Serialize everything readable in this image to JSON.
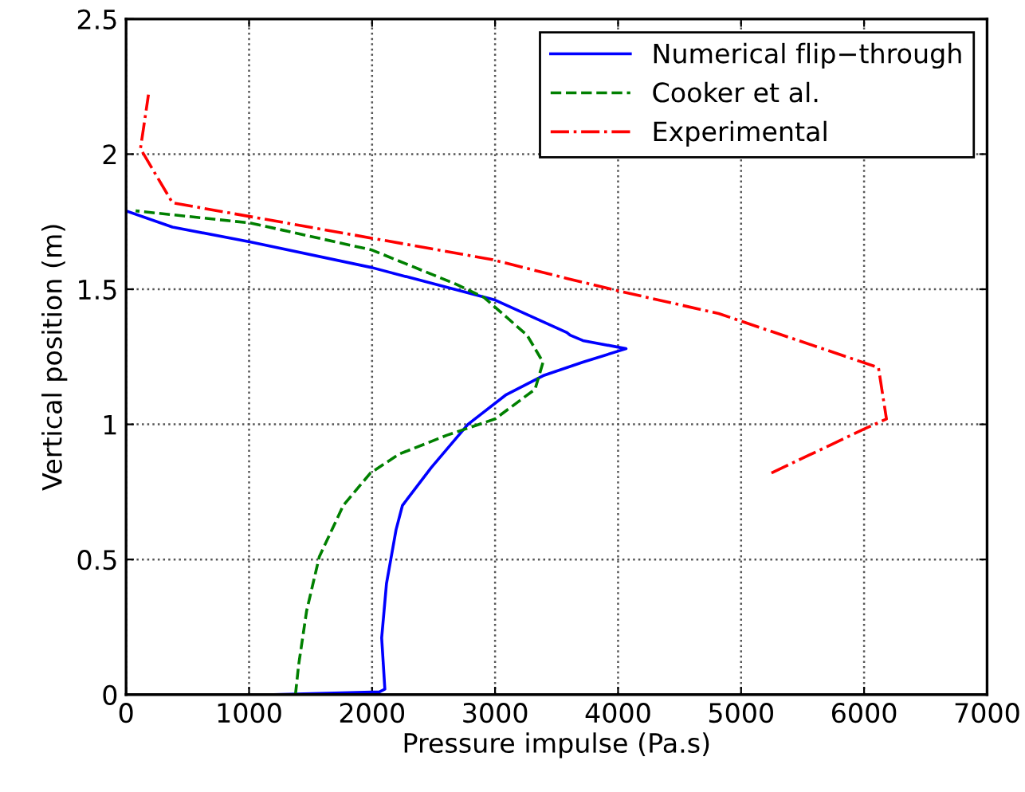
{
  "chart_data": {
    "type": "line",
    "xlabel": "Pressure impulse (Pa.s)",
    "ylabel": "Vertical position (m)",
    "xlim": [
      0,
      7000
    ],
    "ylim": [
      0,
      2.5
    ],
    "xticks": [
      0,
      1000,
      2000,
      3000,
      4000,
      5000,
      6000,
      7000
    ],
    "yticks": [
      0,
      0.5,
      1,
      1.5,
      2,
      2.5
    ],
    "grid": true,
    "legend": "top right",
    "series": [
      {
        "name": "Numerical flip−through",
        "color": "#0000ff",
        "line_style": "solid",
        "x": [
          1200,
          2060,
          2104,
          2078,
          2117,
          2195,
          2247,
          2481,
          2779,
          3091,
          3390,
          3714,
          4065,
          3714,
          3610,
          3584,
          3000,
          2000,
          1013,
          377,
          0
        ],
        "values": [
          0,
          0.01,
          0.02,
          0.21,
          0.41,
          0.61,
          0.7,
          0.84,
          1.0,
          1.11,
          1.18,
          1.23,
          1.28,
          1.31,
          1.33,
          1.34,
          1.46,
          1.58,
          1.675,
          1.73,
          1.79
        ]
      },
      {
        "name": "Cooker et al.",
        "color": "#008000",
        "line_style": "dashed",
        "x": [
          1377,
          1403,
          1468,
          1571,
          1766,
          1987,
          2221,
          2610,
          3000,
          3325,
          3390,
          3260,
          2909,
          2675,
          2000,
          1013,
          78
        ],
        "values": [
          0,
          0.11,
          0.31,
          0.51,
          0.7,
          0.82,
          0.89,
          0.96,
          1.02,
          1.13,
          1.23,
          1.33,
          1.47,
          1.52,
          1.645,
          1.745,
          1.79
        ]
      },
      {
        "name": "Experimental",
        "color": "#ff0000",
        "line_style": "dashdot",
        "x": [
          5247,
          5987,
          6182,
          6117,
          4818,
          4039,
          3584,
          2974,
          377,
          117,
          182
        ],
        "values": [
          0.82,
          0.98,
          1.02,
          1.21,
          1.41,
          1.49,
          1.54,
          1.61,
          1.82,
          2.02,
          2.22
        ]
      }
    ]
  }
}
